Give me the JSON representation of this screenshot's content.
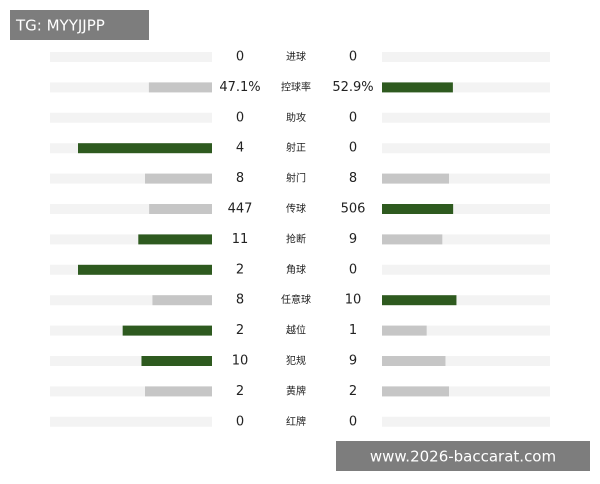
{
  "watermarks": {
    "top": "TG: MYYJJPP",
    "bottom": "www.2026-baccarat.com"
  },
  "colors": {
    "lead": "#2e5a1f",
    "trail": "#c6c6c6",
    "track": "#f3f3f3"
  },
  "stats": [
    {
      "label": "进球",
      "home": 0,
      "away": 0
    },
    {
      "label": "控球率",
      "home": 47.1,
      "away": 52.9,
      "home_label": "47.1%",
      "away_label": "52.9%"
    },
    {
      "label": "助攻",
      "home": 0,
      "away": 0
    },
    {
      "label": "射正",
      "home": 4,
      "away": 0
    },
    {
      "label": "射门",
      "home": 8,
      "away": 8
    },
    {
      "label": "传球",
      "home": 447,
      "away": 506
    },
    {
      "label": "抢断",
      "home": 11,
      "away": 9
    },
    {
      "label": "角球",
      "home": 2,
      "away": 0
    },
    {
      "label": "任意球",
      "home": 8,
      "away": 10
    },
    {
      "label": "越位",
      "home": 2,
      "away": 1
    },
    {
      "label": "犯规",
      "home": 10,
      "away": 9
    },
    {
      "label": "黄牌",
      "home": 2,
      "away": 2
    },
    {
      "label": "红牌",
      "home": 0,
      "away": 0
    }
  ]
}
